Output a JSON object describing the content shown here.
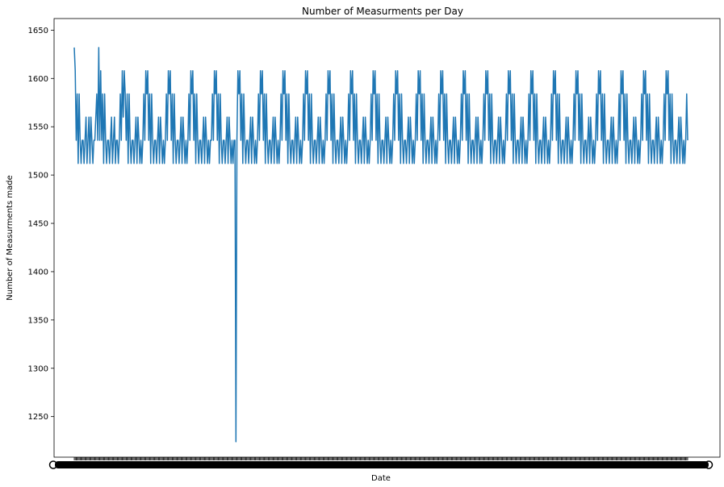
{
  "chart_data": {
    "type": "line",
    "title": "Number of Measurments per Day",
    "xlabel": "Date",
    "ylabel": "Number of Measurments made",
    "ylim": [
      1208,
      1662
    ],
    "yticks": [
      1250,
      1300,
      1350,
      1400,
      1450,
      1500,
      1550,
      1600,
      1650
    ],
    "grid": false,
    "legend": "none",
    "line_color": "#1f77b4",
    "series": [
      {
        "values": [
          1632,
          1608,
          1536,
          1584,
          1512,
          1584,
          1536,
          1512,
          1536,
          1536,
          1512,
          1536,
          1560,
          1512,
          1536,
          1560,
          1512,
          1560,
          1536,
          1512,
          1536,
          1536,
          1560,
          1584,
          1536,
          1632,
          1536,
          1608,
          1536,
          1584,
          1512,
          1584,
          1536,
          1512,
          1536,
          1536,
          1512,
          1536,
          1560,
          1512,
          1536,
          1560,
          1512,
          1536,
          1536,
          1512,
          1536,
          1584,
          1536,
          1608,
          1560,
          1608,
          1584,
          1536,
          1584,
          1512,
          1584,
          1536,
          1512,
          1536,
          1536,
          1512,
          1536,
          1560,
          1512,
          1560,
          1536,
          1512,
          1536,
          1512,
          1536,
          1584,
          1536,
          1608,
          1584,
          1608,
          1536,
          1584,
          1512,
          1584,
          1536,
          1512,
          1536,
          1536,
          1512,
          1536,
          1560,
          1512,
          1560,
          1536,
          1512,
          1536,
          1512,
          1536,
          1584,
          1536,
          1608,
          1584,
          1608,
          1536,
          1584,
          1512,
          1584,
          1536,
          1512,
          1536,
          1536,
          1512,
          1536,
          1560,
          1512,
          1560,
          1536,
          1512,
          1536,
          1512,
          1536,
          1584,
          1536,
          1608,
          1584,
          1608,
          1536,
          1584,
          1512,
          1584,
          1536,
          1512,
          1536,
          1536,
          1512,
          1536,
          1560,
          1512,
          1560,
          1536,
          1512,
          1536,
          1512,
          1536,
          1536,
          1584,
          1536,
          1608,
          1584,
          1608,
          1536,
          1584,
          1512,
          1584,
          1536,
          1512,
          1536,
          1536,
          1512,
          1536,
          1560,
          1512,
          1560,
          1536,
          1512,
          1536,
          1512,
          1536,
          1536,
          1224,
          1536,
          1608,
          1584,
          1608,
          1536,
          1584,
          1512,
          1584,
          1536,
          1512,
          1536,
          1536,
          1512,
          1536,
          1560,
          1512,
          1560,
          1536,
          1512,
          1536,
          1512,
          1536,
          1584,
          1536,
          1608,
          1584,
          1608,
          1536,
          1584,
          1512,
          1584,
          1536,
          1512,
          1536,
          1536,
          1512,
          1536,
          1560,
          1512,
          1560,
          1536,
          1512,
          1536,
          1512,
          1536,
          1584,
          1536,
          1608,
          1584,
          1608,
          1536,
          1584,
          1512,
          1584,
          1536,
          1512,
          1536,
          1536,
          1512,
          1536,
          1560,
          1512,
          1560,
          1536,
          1512,
          1536,
          1512,
          1536,
          1584,
          1536,
          1608,
          1584,
          1608,
          1536,
          1584,
          1512,
          1584,
          1536,
          1512,
          1536,
          1536,
          1512,
          1536,
          1560,
          1512,
          1560,
          1536,
          1512,
          1536,
          1512,
          1536,
          1584,
          1536,
          1608,
          1584,
          1608,
          1536,
          1584,
          1512,
          1584,
          1536,
          1512,
          1536,
          1536,
          1512,
          1536,
          1560,
          1512,
          1560,
          1536,
          1512,
          1536,
          1512,
          1536,
          1584,
          1536,
          1608,
          1584,
          1608,
          1536,
          1584,
          1512,
          1584,
          1536,
          1512,
          1536,
          1536,
          1512,
          1536,
          1560,
          1512,
          1560,
          1536,
          1512,
          1536,
          1512,
          1536,
          1584,
          1536,
          1608,
          1584,
          1608,
          1536,
          1584,
          1512,
          1584,
          1536,
          1512,
          1536,
          1536,
          1512,
          1536,
          1560,
          1512,
          1560,
          1536,
          1512,
          1536,
          1512,
          1536,
          1584,
          1536,
          1608,
          1584,
          1608,
          1536,
          1584,
          1512,
          1584,
          1536,
          1512,
          1536,
          1536,
          1512,
          1536,
          1560,
          1512,
          1560,
          1536,
          1512,
          1536,
          1512,
          1536,
          1584,
          1536,
          1608,
          1584,
          1608,
          1536,
          1584,
          1512,
          1584,
          1536,
          1512,
          1536,
          1536,
          1512,
          1536,
          1560,
          1512,
          1560,
          1536,
          1512,
          1536,
          1512,
          1536,
          1584,
          1536,
          1608,
          1584,
          1608,
          1536,
          1584,
          1512,
          1584,
          1536,
          1512,
          1536,
          1536,
          1512,
          1536,
          1560,
          1512,
          1560,
          1536,
          1512,
          1536,
          1512,
          1536,
          1584,
          1536,
          1608,
          1584,
          1608,
          1536,
          1584,
          1512,
          1584,
          1536,
          1512,
          1536,
          1536,
          1512,
          1536,
          1560,
          1512,
          1560,
          1536,
          1512,
          1536,
          1512,
          1536,
          1584,
          1536,
          1608,
          1584,
          1608,
          1536,
          1584,
          1512,
          1584,
          1536,
          1512,
          1536,
          1536,
          1512,
          1536,
          1560,
          1512,
          1560,
          1536,
          1512,
          1536,
          1512,
          1536,
          1584,
          1536,
          1608,
          1584,
          1608,
          1536,
          1584,
          1512,
          1584,
          1536,
          1512,
          1536,
          1536,
          1512,
          1536,
          1560,
          1512,
          1560,
          1536,
          1512,
          1536,
          1512,
          1536,
          1584,
          1536,
          1608,
          1584,
          1608,
          1536,
          1584,
          1512,
          1584,
          1536,
          1512,
          1536,
          1536,
          1512,
          1536,
          1560,
          1512,
          1560,
          1536,
          1512,
          1536,
          1512,
          1536,
          1584,
          1536,
          1608,
          1584,
          1608,
          1536,
          1584,
          1512,
          1584,
          1536,
          1512,
          1536,
          1536,
          1512,
          1536,
          1560,
          1512,
          1560,
          1536,
          1512,
          1536,
          1512,
          1536,
          1584,
          1536,
          1608,
          1584,
          1608,
          1536,
          1584,
          1512,
          1584,
          1536,
          1512,
          1536,
          1536,
          1512,
          1536,
          1560,
          1512,
          1560,
          1536,
          1512,
          1536,
          1512,
          1536,
          1584,
          1536,
          1608,
          1584,
          1608,
          1536,
          1584,
          1512,
          1584,
          1536,
          1512,
          1536,
          1536,
          1512,
          1536,
          1560,
          1512,
          1560,
          1536,
          1512,
          1536,
          1512,
          1536,
          1584,
          1536,
          1608,
          1584,
          1608,
          1536,
          1584,
          1512,
          1584,
          1536,
          1512,
          1536,
          1536,
          1512,
          1536,
          1560,
          1512,
          1560,
          1536,
          1512,
          1536,
          1512,
          1536,
          1584,
          1536,
          1608,
          1584,
          1608,
          1536,
          1584,
          1512,
          1584,
          1536,
          1512,
          1536,
          1536,
          1512,
          1536,
          1560,
          1512,
          1560,
          1536,
          1512,
          1536,
          1512,
          1536,
          1584,
          1536,
          1608,
          1584,
          1608,
          1536,
          1584,
          1512,
          1584,
          1536,
          1512,
          1536,
          1536,
          1512,
          1536,
          1560,
          1512,
          1560,
          1536,
          1512,
          1536,
          1512,
          1536,
          1584,
          1536
        ]
      }
    ]
  }
}
